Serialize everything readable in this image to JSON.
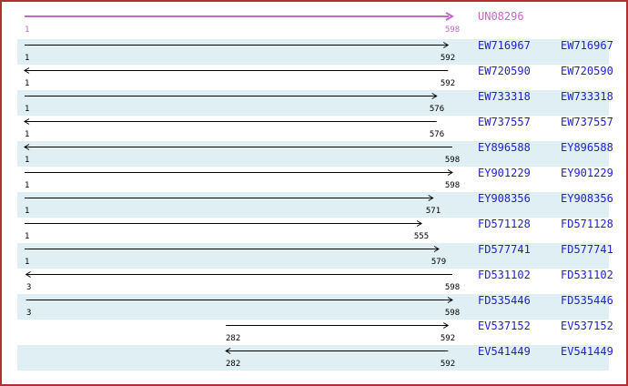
{
  "reference": {
    "id": "UN08296",
    "start": 1,
    "end": 598,
    "start_label": "1",
    "end_label": "598",
    "direction": "right"
  },
  "alignments": [
    {
      "id": "EW716967",
      "start": 1,
      "end": 592,
      "direction": "right",
      "shaded": true
    },
    {
      "id": "EW720590",
      "start": 1,
      "end": 592,
      "direction": "left",
      "shaded": false
    },
    {
      "id": "EW733318",
      "start": 1,
      "end": 576,
      "direction": "right",
      "shaded": true
    },
    {
      "id": "EW737557",
      "start": 1,
      "end": 576,
      "direction": "left",
      "shaded": false
    },
    {
      "id": "EY896588",
      "start": 1,
      "end": 598,
      "direction": "left",
      "shaded": true
    },
    {
      "id": "EY901229",
      "start": 1,
      "end": 598,
      "direction": "right",
      "shaded": false
    },
    {
      "id": "EY908356",
      "start": 1,
      "end": 571,
      "direction": "right",
      "shaded": true
    },
    {
      "id": "FD571128",
      "start": 1,
      "end": 555,
      "direction": "right",
      "shaded": false
    },
    {
      "id": "FD577741",
      "start": 1,
      "end": 579,
      "direction": "right",
      "shaded": true
    },
    {
      "id": "FD531102",
      "start": 3,
      "end": 598,
      "direction": "left",
      "shaded": false
    },
    {
      "id": "FD535446",
      "start": 3,
      "end": 598,
      "direction": "right",
      "shaded": true
    },
    {
      "id": "EV537152",
      "start": 282,
      "end": 592,
      "direction": "right",
      "shaded": false
    },
    {
      "id": "EV541449",
      "start": 282,
      "end": 592,
      "direction": "left",
      "shaded": true
    }
  ],
  "colors": {
    "border": "#b23030",
    "row_band": "#e0eff4",
    "sequence_id_blue": "#2121cc",
    "reference_magenta": "#c666c6",
    "alignment_arrow": "#000000"
  },
  "chart_data": {
    "type": "bar",
    "subtype": "horizontal-span-alignment",
    "title": "UN08296",
    "xlabel": "",
    "ylabel": "",
    "xlim": [
      1,
      598
    ],
    "grid": false,
    "legend": "none",
    "reference": {
      "name": "UN08296",
      "start": 1,
      "end": 598,
      "strand": "+"
    },
    "series": [
      {
        "name": "EW716967",
        "start": 1,
        "end": 592,
        "strand": "+"
      },
      {
        "name": "EW720590",
        "start": 1,
        "end": 592,
        "strand": "-"
      },
      {
        "name": "EW733318",
        "start": 1,
        "end": 576,
        "strand": "+"
      },
      {
        "name": "EW737557",
        "start": 1,
        "end": 576,
        "strand": "-"
      },
      {
        "name": "EY896588",
        "start": 1,
        "end": 598,
        "strand": "-"
      },
      {
        "name": "EY901229",
        "start": 1,
        "end": 598,
        "strand": "+"
      },
      {
        "name": "EY908356",
        "start": 1,
        "end": 571,
        "strand": "+"
      },
      {
        "name": "FD571128",
        "start": 1,
        "end": 555,
        "strand": "+"
      },
      {
        "name": "FD577741",
        "start": 1,
        "end": 579,
        "strand": "+"
      },
      {
        "name": "FD531102",
        "start": 3,
        "end": 598,
        "strand": "-"
      },
      {
        "name": "FD535446",
        "start": 3,
        "end": 598,
        "strand": "+"
      },
      {
        "name": "EV537152",
        "start": 282,
        "end": 592,
        "strand": "+"
      },
      {
        "name": "EV541449",
        "start": 282,
        "end": 592,
        "strand": "-"
      }
    ]
  }
}
